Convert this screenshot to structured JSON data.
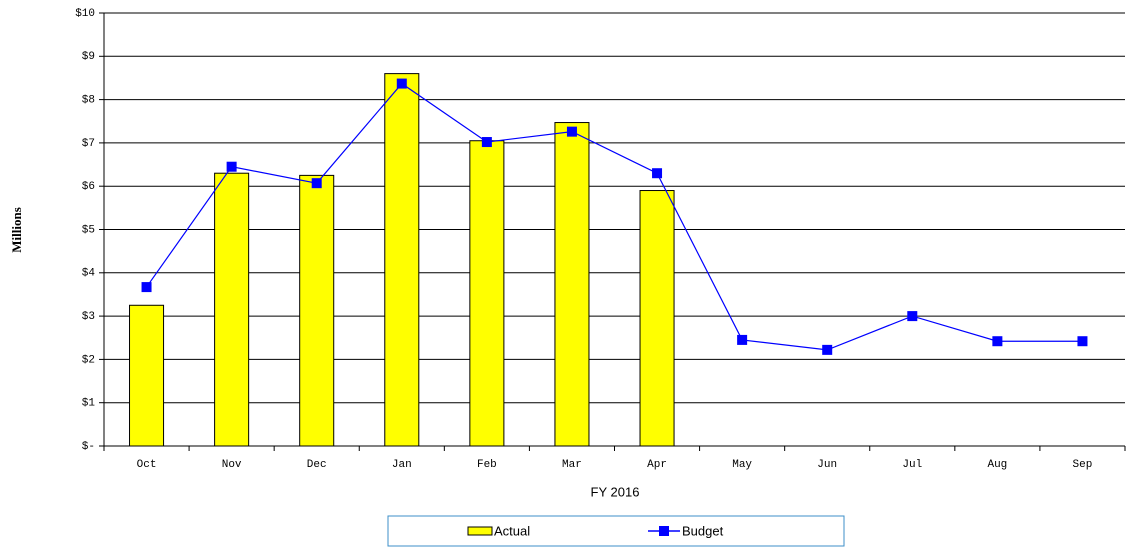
{
  "chart_data": {
    "type": "bar",
    "x_label": "FY 2016",
    "y_label": "Millions",
    "categories": [
      "Oct",
      "Nov",
      "Dec",
      "Jan",
      "Feb",
      "Mar",
      "Apr",
      "May",
      "Jun",
      "Jul",
      "Aug",
      "Sep"
    ],
    "series": [
      {
        "name": "Actual",
        "type": "bar",
        "color": "#ffff00",
        "values": [
          3.25,
          6.3,
          6.25,
          8.6,
          7.05,
          7.47,
          5.9,
          null,
          null,
          null,
          null,
          null
        ]
      },
      {
        "name": "Budget",
        "type": "line",
        "color": "#0000ff",
        "values": [
          3.67,
          6.45,
          6.07,
          8.37,
          7.02,
          7.26,
          6.3,
          2.45,
          2.22,
          3.0,
          2.42,
          2.42
        ]
      }
    ],
    "ylim": [
      0,
      10
    ],
    "yticks": [
      {
        "value": 0,
        "label": "$-"
      },
      {
        "value": 1,
        "label": "$1"
      },
      {
        "value": 2,
        "label": "$2"
      },
      {
        "value": 3,
        "label": "$3"
      },
      {
        "value": 4,
        "label": "$4"
      },
      {
        "value": 5,
        "label": "$5"
      },
      {
        "value": 6,
        "label": "$6"
      },
      {
        "value": 7,
        "label": "$7"
      },
      {
        "value": 8,
        "label": "$8"
      },
      {
        "value": 9,
        "label": "$9"
      },
      {
        "value": 10,
        "label": "$10"
      }
    ],
    "grid": true,
    "legend": "bottom"
  }
}
